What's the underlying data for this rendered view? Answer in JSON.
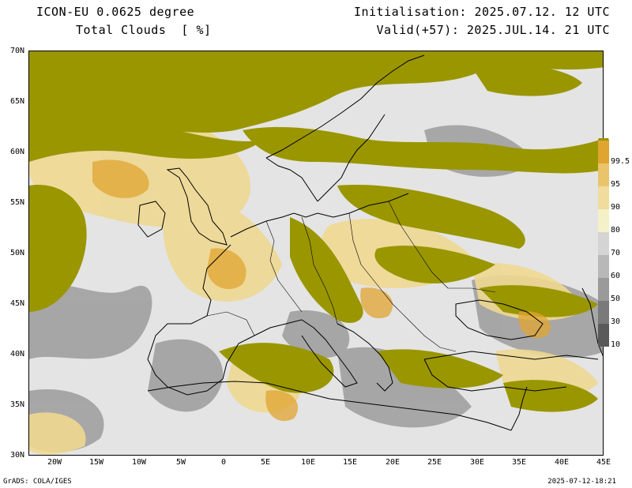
{
  "header": {
    "model": "ICON-EU 0.0625 degree",
    "variable": "Total Clouds  [ %]",
    "init": "Initialisation: 2025.07.12. 12 UTC",
    "valid": "Valid(+57): 2025.JUL.14. 21 UTC"
  },
  "axes": {
    "lat_labels": [
      "70N",
      "65N",
      "60N",
      "55N",
      "50N",
      "45N",
      "40N",
      "35N",
      "30N"
    ],
    "lon_labels": [
      "20W",
      "15W",
      "10W",
      "5W",
      "0",
      "5E",
      "10E",
      "15E",
      "20E",
      "25E",
      "30E",
      "35E",
      "40E",
      "45E"
    ]
  },
  "colorbar": {
    "levels": [
      "10",
      "30",
      "50",
      "60",
      "70",
      "80",
      "90",
      "95",
      "99.5"
    ],
    "colors": [
      "#5a5a5a",
      "#7a7a7a",
      "#9a9a9a",
      "#b8b8b8",
      "#d4d4d4",
      "#f4f0c8",
      "#f0dc9c",
      "#e9c46a",
      "#e0a430",
      "#9a9600"
    ]
  },
  "footer": {
    "left": "GrADS: COLA/IGES",
    "right": "2025-07-12-18:21"
  }
}
